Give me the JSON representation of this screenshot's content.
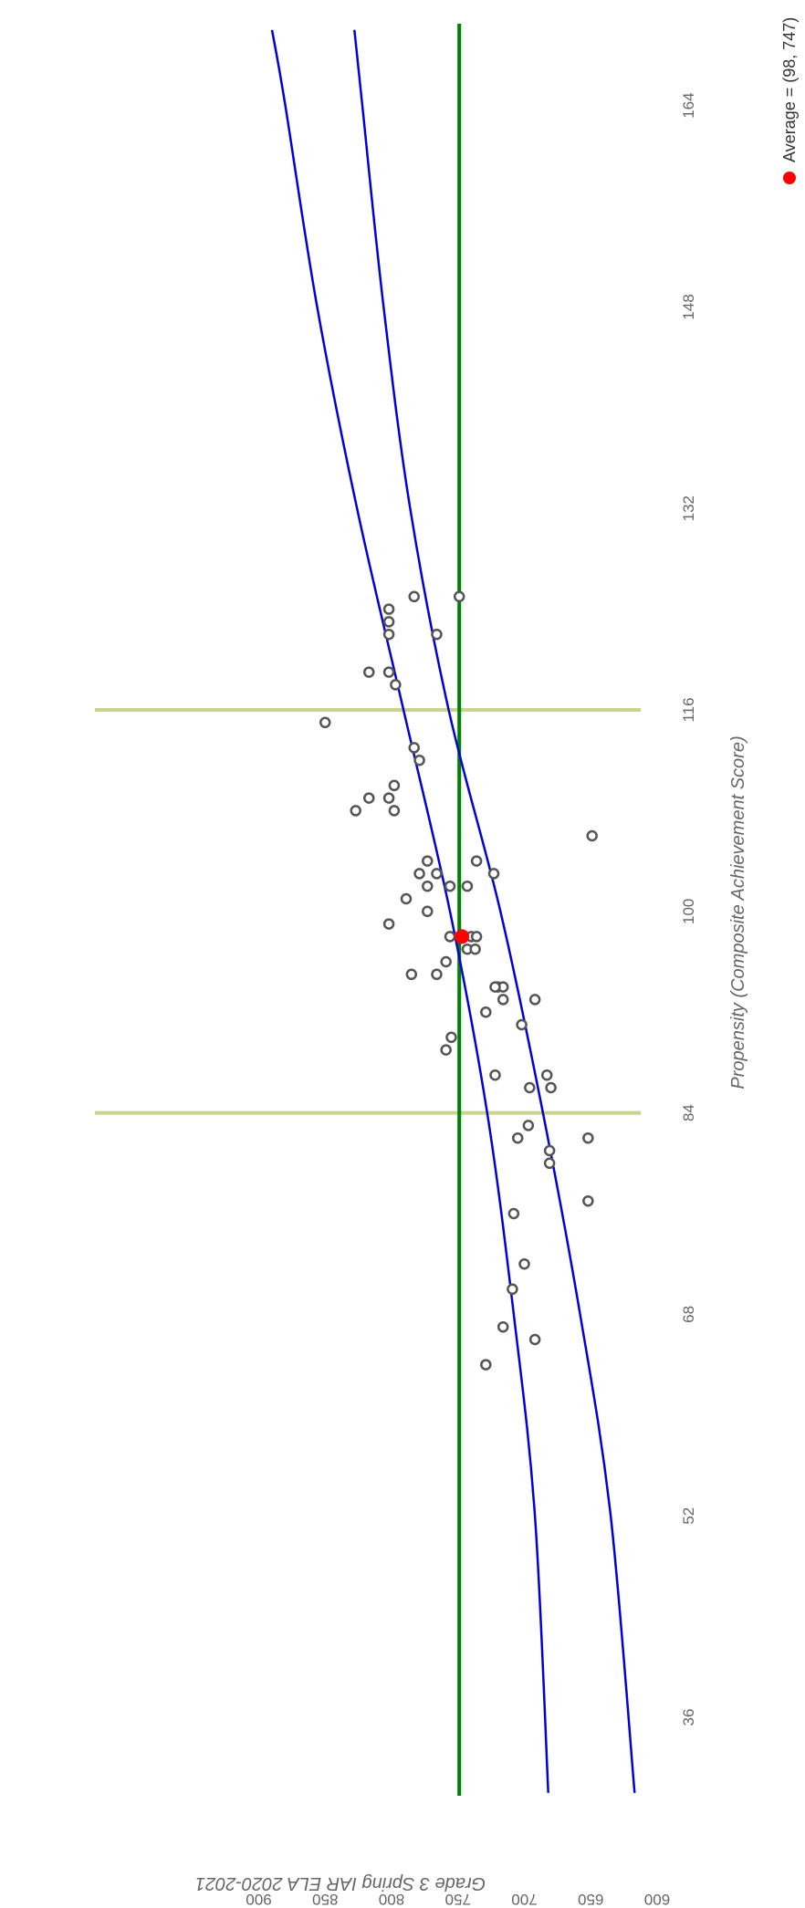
{
  "chart_data": {
    "type": "scatter",
    "orientation": "rotated 90 degrees clockwise",
    "xlabel": "Propensity (Composite Achievement Score)",
    "ylabel": "Grade 3 Spring IAR ELA 2020-2021",
    "xlim": [
      29,
      174
    ],
    "ylim": [
      600,
      900
    ],
    "x_ticks": [
      36,
      52,
      68,
      84,
      100,
      116,
      132,
      148,
      164
    ],
    "y_ticks": [
      600,
      650,
      700,
      750,
      800,
      850,
      900
    ],
    "points": [
      [
        115,
        850
      ],
      [
        108,
        827
      ],
      [
        109,
        817
      ],
      [
        119,
        817
      ],
      [
        109,
        802
      ],
      [
        110,
        798
      ],
      [
        108,
        798
      ],
      [
        119,
        802
      ],
      [
        118,
        797
      ],
      [
        122,
        802
      ],
      [
        123,
        802
      ],
      [
        124,
        802
      ],
      [
        125,
        783
      ],
      [
        122,
        766
      ],
      [
        125,
        749
      ],
      [
        113,
        783
      ],
      [
        112,
        779
      ],
      [
        103,
        779
      ],
      [
        104,
        773
      ],
      [
        101,
        789
      ],
      [
        102,
        773
      ],
      [
        100,
        773
      ],
      [
        99,
        802
      ],
      [
        95,
        785
      ],
      [
        95,
        766
      ],
      [
        103,
        766
      ],
      [
        102,
        756
      ],
      [
        96,
        759
      ],
      [
        98,
        756
      ],
      [
        97,
        743
      ],
      [
        98,
        740
      ],
      [
        98,
        736
      ],
      [
        104,
        736
      ],
      [
        102,
        743
      ],
      [
        103,
        723
      ],
      [
        97,
        737
      ],
      [
        94,
        720
      ],
      [
        94,
        716
      ],
      [
        93,
        716
      ],
      [
        94,
        722
      ],
      [
        93,
        692
      ],
      [
        92,
        729
      ],
      [
        91,
        702
      ],
      [
        90,
        755
      ],
      [
        89,
        759
      ],
      [
        87,
        722
      ],
      [
        87,
        683
      ],
      [
        86,
        696
      ],
      [
        86,
        680
      ],
      [
        83,
        697
      ],
      [
        82,
        705
      ],
      [
        82,
        652
      ],
      [
        81,
        681
      ],
      [
        80,
        681
      ],
      [
        77,
        652
      ],
      [
        76,
        708
      ],
      [
        72,
        700
      ],
      [
        70,
        709
      ],
      [
        67,
        716
      ],
      [
        66,
        692
      ],
      [
        64,
        729
      ],
      [
        106,
        649
      ]
    ],
    "average": {
      "x": 98,
      "y": 747
    },
    "reference_line": {
      "y": 749,
      "color": "#008000"
    },
    "vertical_lines": {
      "x": [
        84,
        116
      ],
      "color": "#c8d48c"
    },
    "fit_curves": {
      "color": "#0000dd",
      "upper": [
        [
          30,
          682
        ],
        [
          52,
          692
        ],
        [
          68,
          708
        ],
        [
          84,
          728
        ],
        [
          100,
          756
        ],
        [
          116,
          791
        ],
        [
          132,
          826
        ],
        [
          148,
          856
        ],
        [
          164,
          880
        ],
        [
          170,
          890
        ]
      ],
      "lower": [
        [
          30,
          617
        ],
        [
          52,
          635
        ],
        [
          68,
          658
        ],
        [
          84,
          686
        ],
        [
          100,
          718
        ],
        [
          116,
          757
        ],
        [
          132,
          786
        ],
        [
          148,
          806
        ],
        [
          164,
          822
        ],
        [
          170,
          828
        ]
      ]
    },
    "legend": {
      "label": "Average = (98, 747)",
      "color": "#ff0000",
      "position": "right"
    },
    "grid": false
  }
}
